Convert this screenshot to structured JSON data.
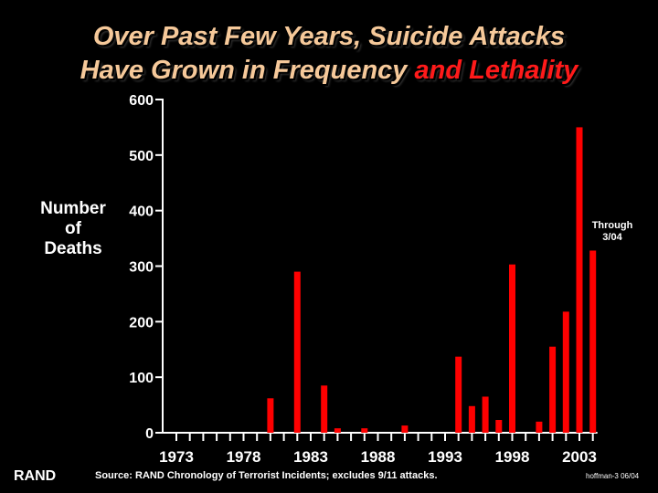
{
  "title": {
    "line1": "Over Past Few Years, Suicide Attacks",
    "line2_main": "Have Grown in Frequency",
    "line2_accent": "and Lethality"
  },
  "ylabel": {
    "line1": "Number",
    "line2": "of",
    "line3": "Deaths"
  },
  "annotation": {
    "line1": "Through",
    "line2": "3/04"
  },
  "logo": "RAND",
  "source": "Source:  RAND Chronology of Terrorist Incidents; excludes 9/11 attacks.",
  "footnote": "hoffman-3  06/04",
  "colors": {
    "title": "#f6c99a",
    "accent": "#ff1a1a",
    "bar": "#ff0000",
    "axis": "#ffffff",
    "background": "#000000"
  },
  "chart_data": {
    "type": "bar",
    "ylim": [
      0,
      600
    ],
    "yticks": [
      0,
      100,
      200,
      300,
      400,
      500,
      600
    ],
    "xlim": [
      1973,
      2004
    ],
    "xticks": [
      "1973",
      "1978",
      "1983",
      "1988",
      "1993",
      "1998",
      "2003"
    ],
    "x": [
      1980,
      1982,
      1984,
      1985,
      1987,
      1990,
      1994,
      1995,
      1996,
      1997,
      1998,
      2000,
      2001,
      2002,
      2003,
      2004
    ],
    "values": [
      62,
      290,
      85,
      8,
      8,
      13,
      137,
      48,
      65,
      23,
      303,
      20,
      155,
      218,
      550,
      328
    ]
  }
}
